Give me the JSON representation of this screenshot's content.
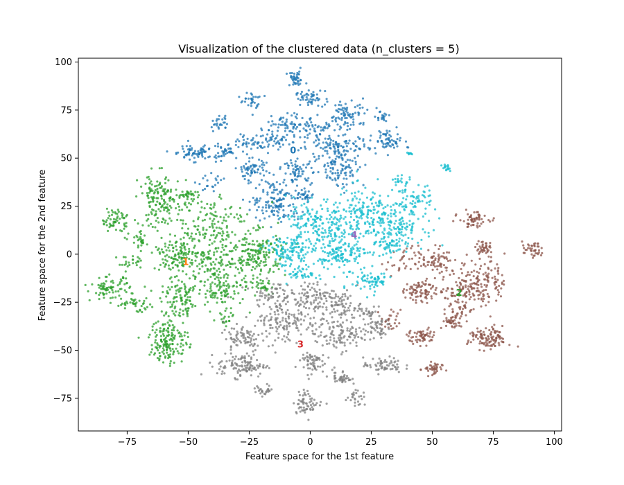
{
  "chart_data": {
    "type": "scatter",
    "title": "Visualization of the clustered data (n_clusters = 5)",
    "xlabel": "Feature space for the 1st feature",
    "ylabel": "Feature space for the 2nd feature",
    "xlim": [
      -95,
      103
    ],
    "ylim": [
      -92,
      102
    ],
    "xticks": [
      -75,
      -50,
      -25,
      0,
      25,
      50,
      75,
      100
    ],
    "yticks": [
      -75,
      -50,
      -25,
      0,
      25,
      50,
      75,
      100
    ],
    "xtick_labels": [
      "−75",
      "−50",
      "−25",
      "0",
      "25",
      "50",
      "75",
      "100"
    ],
    "ytick_labels": [
      "−75",
      "−50",
      "−25",
      "0",
      "25",
      "50",
      "75",
      "100"
    ],
    "grid": false,
    "series": [
      {
        "cluster": "0",
        "color": "#1f77b4",
        "blobs": [
          {
            "x": -6,
            "y": 91,
            "sx": 2,
            "sy": 2,
            "n": 40
          },
          {
            "x": 0,
            "y": 81,
            "sx": 3,
            "sy": 2,
            "n": 50
          },
          {
            "x": -24,
            "y": 80,
            "sx": 2,
            "sy": 2,
            "n": 30
          },
          {
            "x": 16,
            "y": 73,
            "sx": 4,
            "sy": 4,
            "n": 80
          },
          {
            "x": -10,
            "y": 66,
            "sx": 5,
            "sy": 4,
            "n": 90
          },
          {
            "x": -37,
            "y": 68,
            "sx": 2,
            "sy": 2,
            "n": 25
          },
          {
            "x": 29,
            "y": 72,
            "sx": 1.5,
            "sy": 1.5,
            "n": 20
          },
          {
            "x": 32,
            "y": 59,
            "sx": 3,
            "sy": 3,
            "n": 60
          },
          {
            "x": -48,
            "y": 53,
            "sx": 5,
            "sy": 2,
            "n": 70
          },
          {
            "x": -35,
            "y": 53,
            "sx": 3,
            "sy": 2,
            "n": 40
          },
          {
            "x": -20,
            "y": 58,
            "sx": 5,
            "sy": 2,
            "n": 60
          },
          {
            "x": 10,
            "y": 56,
            "sx": 8,
            "sy": 3,
            "n": 110
          },
          {
            "x": -24,
            "y": 44,
            "sx": 3,
            "sy": 3,
            "n": 60
          },
          {
            "x": -5,
            "y": 43,
            "sx": 3,
            "sy": 3,
            "n": 60
          },
          {
            "x": 12,
            "y": 45,
            "sx": 5,
            "sy": 5,
            "n": 100
          },
          {
            "x": -14,
            "y": 28,
            "sx": 5,
            "sy": 6,
            "n": 140
          },
          {
            "x": -2,
            "y": 30,
            "sx": 2,
            "sy": 2,
            "n": 30
          },
          {
            "x": -40,
            "y": 37,
            "sx": 3,
            "sy": 2,
            "n": 20
          },
          {
            "x": 5,
            "y": 66,
            "sx": 3,
            "sy": 1.5,
            "n": 25
          }
        ]
      },
      {
        "cluster": "1",
        "color": "#2ca02c",
        "blobs": [
          {
            "x": -80,
            "y": 18,
            "sx": 3,
            "sy": 3,
            "n": 60
          },
          {
            "x": -82,
            "y": -18,
            "sx": 4,
            "sy": 3,
            "n": 80
          },
          {
            "x": -72,
            "y": -26,
            "sx": 4,
            "sy": 2,
            "n": 40
          },
          {
            "x": -70,
            "y": 7,
            "sx": 2,
            "sy": 2,
            "n": 25
          },
          {
            "x": -73,
            "y": -5,
            "sx": 3,
            "sy": 2,
            "n": 25
          },
          {
            "x": -62,
            "y": 28,
            "sx": 4,
            "sy": 7,
            "n": 150
          },
          {
            "x": -58,
            "y": -45,
            "sx": 4,
            "sy": 6,
            "n": 160
          },
          {
            "x": -53,
            "y": -25,
            "sx": 4,
            "sy": 5,
            "n": 100
          },
          {
            "x": -55,
            "y": 0,
            "sx": 5,
            "sy": 4,
            "n": 110
          },
          {
            "x": -42,
            "y": 15,
            "sx": 8,
            "sy": 10,
            "n": 170
          },
          {
            "x": -38,
            "y": -8,
            "sx": 9,
            "sy": 8,
            "n": 180
          },
          {
            "x": -22,
            "y": 0,
            "sx": 6,
            "sy": 6,
            "n": 150
          },
          {
            "x": -36,
            "y": -20,
            "sx": 4,
            "sy": 3,
            "n": 60
          },
          {
            "x": -34,
            "y": -33,
            "sx": 2,
            "sy": 2,
            "n": 20
          },
          {
            "x": -20,
            "y": -16,
            "sx": 2,
            "sy": 2,
            "n": 25
          },
          {
            "x": -50,
            "y": 30,
            "sx": 3,
            "sy": 2,
            "n": 30
          }
        ]
      },
      {
        "cluster": "2",
        "color": "#8c564b",
        "blobs": [
          {
            "x": 67,
            "y": 18,
            "sx": 3,
            "sy": 2,
            "n": 60
          },
          {
            "x": 71,
            "y": 3,
            "sx": 2,
            "sy": 2,
            "n": 40
          },
          {
            "x": 91,
            "y": 2,
            "sx": 2,
            "sy": 2,
            "n": 40
          },
          {
            "x": 52,
            "y": -3,
            "sx": 3,
            "sy": 3,
            "n": 60
          },
          {
            "x": 45,
            "y": -19,
            "sx": 3,
            "sy": 3,
            "n": 80
          },
          {
            "x": 70,
            "y": -14,
            "sx": 5,
            "sy": 6,
            "n": 140
          },
          {
            "x": 62,
            "y": -22,
            "sx": 5,
            "sy": 6,
            "n": 90
          },
          {
            "x": 58,
            "y": -35,
            "sx": 2,
            "sy": 2,
            "n": 40
          },
          {
            "x": 46,
            "y": -43,
            "sx": 3,
            "sy": 2,
            "n": 60
          },
          {
            "x": 73,
            "y": -44,
            "sx": 4,
            "sy": 3,
            "n": 110
          },
          {
            "x": 50,
            "y": -60,
            "sx": 2,
            "sy": 2,
            "n": 40
          },
          {
            "x": 39,
            "y": -4,
            "sx": 4,
            "sy": 4,
            "n": 40
          },
          {
            "x": 33,
            "y": -35,
            "sx": 2,
            "sy": 3,
            "n": 25
          }
        ]
      },
      {
        "cluster": "3",
        "color": "#7f7f7f",
        "blobs": [
          {
            "x": -28,
            "y": -58,
            "sx": 5,
            "sy": 3,
            "n": 110
          },
          {
            "x": -28,
            "y": -43,
            "sx": 4,
            "sy": 4,
            "n": 70
          },
          {
            "x": -10,
            "y": -35,
            "sx": 7,
            "sy": 6,
            "n": 150
          },
          {
            "x": 0,
            "y": -22,
            "sx": 5,
            "sy": 4,
            "n": 90
          },
          {
            "x": 13,
            "y": -27,
            "sx": 4,
            "sy": 4,
            "n": 80
          },
          {
            "x": 12,
            "y": -42,
            "sx": 5,
            "sy": 4,
            "n": 100
          },
          {
            "x": 0,
            "y": -56,
            "sx": 3,
            "sy": 3,
            "n": 60
          },
          {
            "x": 27,
            "y": -38,
            "sx": 3,
            "sy": 3,
            "n": 50
          },
          {
            "x": 30,
            "y": -58,
            "sx": 4,
            "sy": 2,
            "n": 60
          },
          {
            "x": 13,
            "y": -64,
            "sx": 2,
            "sy": 2,
            "n": 40
          },
          {
            "x": 19,
            "y": -75,
            "sx": 2,
            "sy": 2,
            "n": 25
          },
          {
            "x": -19,
            "y": -71,
            "sx": 2,
            "sy": 1.5,
            "n": 25
          },
          {
            "x": -1,
            "y": -77,
            "sx": 3,
            "sy": 3,
            "n": 60
          },
          {
            "x": 24,
            "y": -31,
            "sx": 2,
            "sy": 2,
            "n": 20
          },
          {
            "x": -16,
            "y": -20,
            "sx": 4,
            "sy": 3,
            "n": 50
          }
        ]
      },
      {
        "cluster": "4",
        "color": "#17becf",
        "blobs": [
          {
            "x": 2,
            "y": 15,
            "sx": 6,
            "sy": 7,
            "n": 170
          },
          {
            "x": 22,
            "y": 20,
            "sx": 7,
            "sy": 7,
            "n": 170
          },
          {
            "x": 35,
            "y": 15,
            "sx": 6,
            "sy": 6,
            "n": 140
          },
          {
            "x": 14,
            "y": 2,
            "sx": 7,
            "sy": 5,
            "n": 120
          },
          {
            "x": -9,
            "y": 1,
            "sx": 5,
            "sy": 4,
            "n": 110
          },
          {
            "x": -3,
            "y": -10,
            "sx": 3,
            "sy": 2,
            "n": 40
          },
          {
            "x": 25,
            "y": -14,
            "sx": 4,
            "sy": 3,
            "n": 70
          },
          {
            "x": 11,
            "y": -2,
            "sx": 3,
            "sy": 2,
            "n": 30
          },
          {
            "x": 37,
            "y": 38,
            "sx": 2,
            "sy": 2,
            "n": 20
          },
          {
            "x": 56,
            "y": 45,
            "sx": 1,
            "sy": 1,
            "n": 15
          },
          {
            "x": 41,
            "y": 52,
            "sx": 1,
            "sy": 1,
            "n": 8
          },
          {
            "x": 42,
            "y": 28,
            "sx": 4,
            "sy": 4,
            "n": 60
          },
          {
            "x": 33,
            "y": 4,
            "sx": 2,
            "sy": 2,
            "n": 30
          }
        ]
      }
    ],
    "cluster_labels": [
      {
        "text": "0",
        "x": -7,
        "y": 54,
        "color": "#1f77b4"
      },
      {
        "text": "1",
        "x": -51,
        "y": -4,
        "color": "#ff7f0e"
      },
      {
        "text": "2",
        "x": 61,
        "y": -20,
        "color": "#2ca02c"
      },
      {
        "text": "3",
        "x": -4,
        "y": -47,
        "color": "#d62728"
      },
      {
        "text": "4",
        "x": 18,
        "y": 10,
        "color": "#9467bd"
      }
    ]
  }
}
